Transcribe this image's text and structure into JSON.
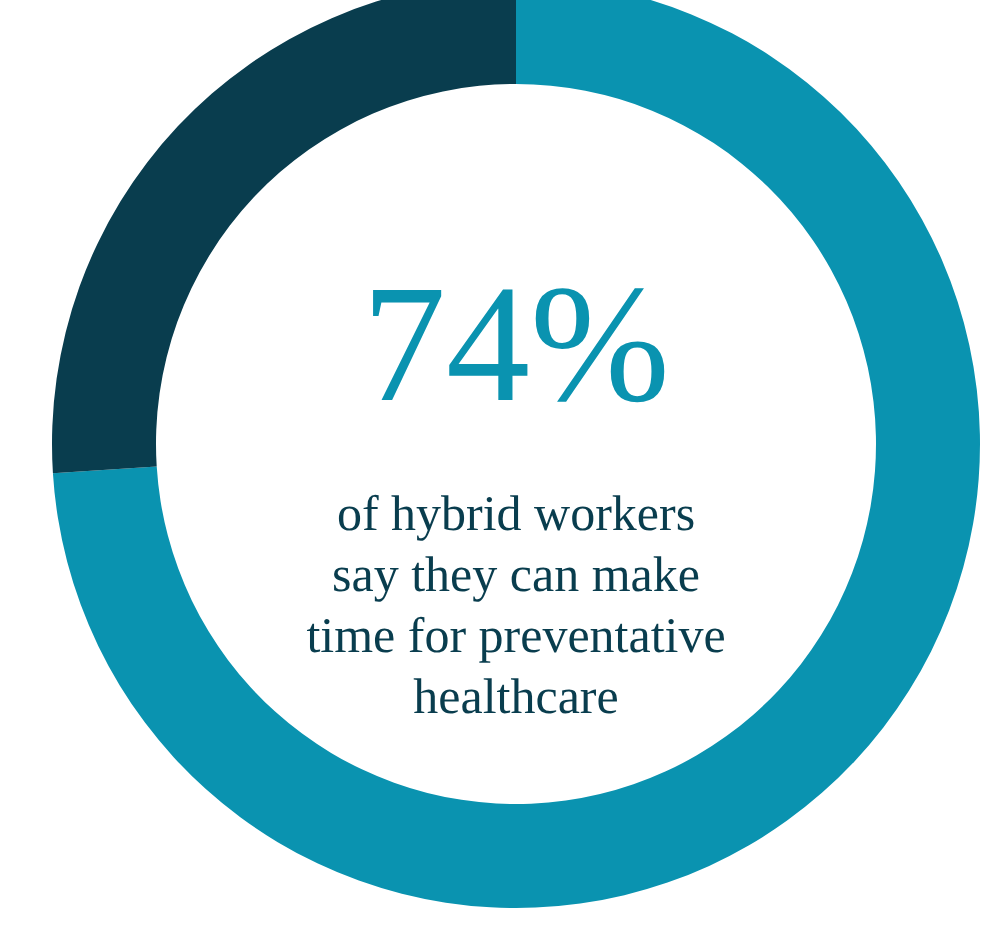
{
  "chart_data": {
    "type": "donut",
    "categories": [
      null,
      null
    ],
    "values": [
      74,
      26
    ],
    "colors": [
      "#0a93b0",
      "#093d4e"
    ],
    "annotations": [
      "74%",
      "of hybrid workers\nsay they can make\ntime for preventative\nhealthcare"
    ]
  }
}
